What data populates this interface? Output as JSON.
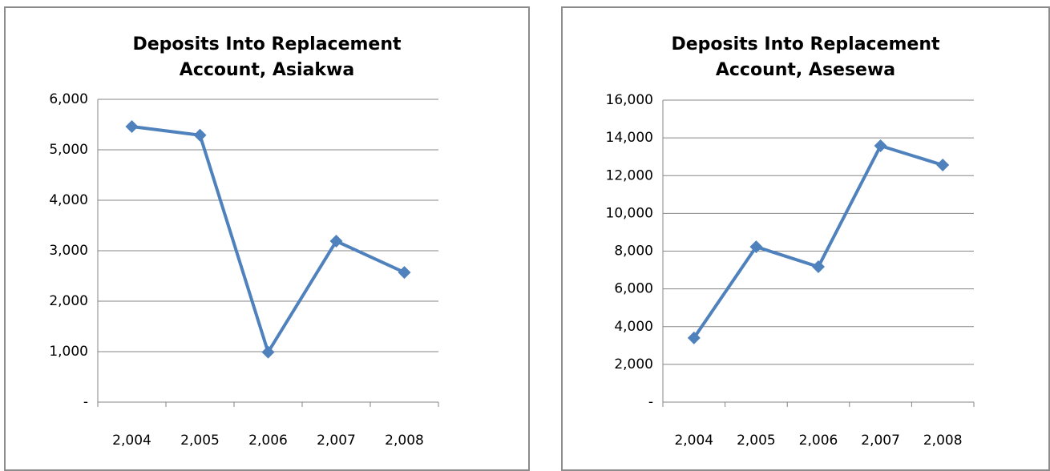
{
  "chart_data": [
    {
      "type": "line",
      "title": "Deposits Into Replacement Account, Asiakwa",
      "categories": [
        "2,004",
        "2,005",
        "2,006",
        "2,007",
        "2,008"
      ],
      "series": [
        {
          "name": "Asiakwa",
          "color": "#4f81bd",
          "values": [
            5460,
            5290,
            990,
            3190,
            2570
          ]
        }
      ],
      "ylim": [
        0,
        6000
      ],
      "yticks": [
        {
          "value": 0,
          "label": "-"
        },
        {
          "value": 1000,
          "label": "1,000"
        },
        {
          "value": 2000,
          "label": "2,000"
        },
        {
          "value": 3000,
          "label": "3,000"
        },
        {
          "value": 4000,
          "label": "4,000"
        },
        {
          "value": 5000,
          "label": "5,000"
        },
        {
          "value": 6000,
          "label": "6,000"
        }
      ],
      "grid": true
    },
    {
      "type": "line",
      "title": "Deposits Into Replacement Account, Asesewa",
      "categories": [
        "2,004",
        "2,005",
        "2,006",
        "2,007",
        "2,008"
      ],
      "series": [
        {
          "name": "Asesewa",
          "color": "#4f81bd",
          "values": [
            3400,
            8230,
            7170,
            13580,
            12560
          ]
        }
      ],
      "ylim": [
        0,
        16000
      ],
      "yticks": [
        {
          "value": 0,
          "label": "-"
        },
        {
          "value": 2000,
          "label": "2,000"
        },
        {
          "value": 4000,
          "label": "4,000"
        },
        {
          "value": 6000,
          "label": "6,000"
        },
        {
          "value": 8000,
          "label": "8,000"
        },
        {
          "value": 10000,
          "label": "10,000"
        },
        {
          "value": 12000,
          "label": "12,000"
        },
        {
          "value": 14000,
          "label": "14,000"
        },
        {
          "value": 16000,
          "label": "16,000"
        }
      ],
      "grid": true
    }
  ]
}
